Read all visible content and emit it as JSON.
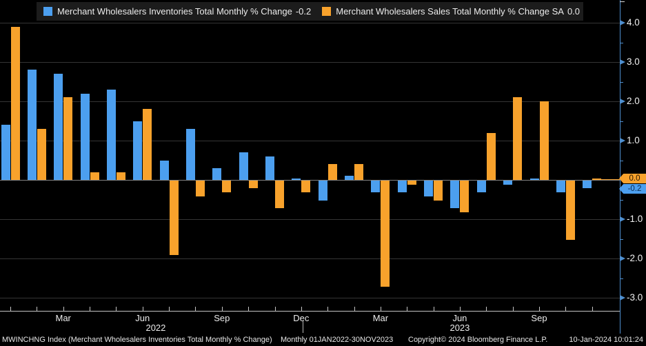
{
  "legend": {
    "items": [
      {
        "label": "Merchant Wholesalers Inventories Total Monthly % Change",
        "value": "-0.2",
        "swatch": "blue-square"
      },
      {
        "label": "Merchant Wholesalers Sales Total Monthly % Change SA",
        "value": "0.0",
        "swatch": "orange-square"
      }
    ]
  },
  "colors": {
    "inventories_blue": "#4C9FEF",
    "sales_orange": "#F8A22C",
    "axis_blue": "#4E8FD0",
    "grid_gray": "#353535",
    "zero_line_gray": "#909090",
    "background": "#000000",
    "legend_background": "#1c1c1c"
  },
  "y_axis": {
    "last_values": {
      "sales": "0.0",
      "inventories": "-0.2"
    }
  },
  "chart_data": {
    "type": "bar",
    "categories": [
      "Jan 2022",
      "Feb 2022",
      "Mar 2022",
      "Apr 2022",
      "May 2022",
      "Jun 2022",
      "Jul 2022",
      "Aug 2022",
      "Sep 2022",
      "Oct 2022",
      "Nov 2022",
      "Dec 2022",
      "Jan 2023",
      "Feb 2023",
      "Mar 2023",
      "Apr 2023",
      "May 2023",
      "Jun 2023",
      "Jul 2023",
      "Aug 2023",
      "Sep 2023",
      "Oct 2023",
      "Nov 2023"
    ],
    "series": [
      {
        "name": "Merchant Wholesalers Inventories Total Monthly % Change",
        "color": "#4C9FEF",
        "values": [
          1.4,
          2.8,
          2.7,
          2.2,
          2.3,
          1.5,
          0.5,
          1.3,
          0.3,
          0.7,
          0.6,
          0.0,
          -0.5,
          0.1,
          -0.3,
          -0.3,
          -0.4,
          -0.7,
          -0.3,
          -0.1,
          0.0,
          -0.3,
          -0.2
        ]
      },
      {
        "name": "Merchant Wholesalers Sales Total Monthly % Change SA",
        "color": "#F8A22C",
        "values": [
          3.9,
          1.3,
          2.1,
          0.2,
          0.2,
          1.8,
          -1.9,
          -0.4,
          -0.3,
          -0.2,
          -0.7,
          -0.3,
          0.4,
          0.4,
          -2.7,
          -0.1,
          -0.5,
          -0.8,
          1.2,
          2.1,
          2.0,
          -1.5,
          0.0
        ]
      }
    ],
    "ylim": [
      -3.3,
      4.6
    ],
    "yticks": [
      {
        "v": 4,
        "label": "4.0"
      },
      {
        "v": 3,
        "label": "3.0"
      },
      {
        "v": 2,
        "label": "2.0"
      },
      {
        "v": 1,
        "label": "1.0"
      },
      {
        "v": -1,
        "label": "-1.0"
      },
      {
        "v": -2,
        "label": "-2.0"
      },
      {
        "v": -3,
        "label": "-3.0"
      }
    ],
    "x_tick_labels": [
      {
        "i": 2,
        "label": "Mar"
      },
      {
        "i": 5,
        "label": "Jun"
      },
      {
        "i": 8,
        "label": "Sep"
      },
      {
        "i": 11,
        "label": "Dec"
      },
      {
        "i": 14,
        "label": "Mar"
      },
      {
        "i": 17,
        "label": "Jun"
      },
      {
        "i": 20,
        "label": "Sep"
      }
    ],
    "year_labels": [
      {
        "label": "2022",
        "from": 0,
        "to": 11
      },
      {
        "label": "2023",
        "from": 12,
        "to": 22
      }
    ],
    "grid": true,
    "legend_position": "top"
  },
  "footer": {
    "instrument": "MWINCHNG Index (Merchant Wholesalers Inventories Total Monthly % Change)",
    "periodicity": "Monthly 01JAN2022-30NOV2023",
    "copyright": "Copyright© 2024 Bloomberg Finance L.P.",
    "timestamp": "10-Jan-2024 10:01:24"
  }
}
